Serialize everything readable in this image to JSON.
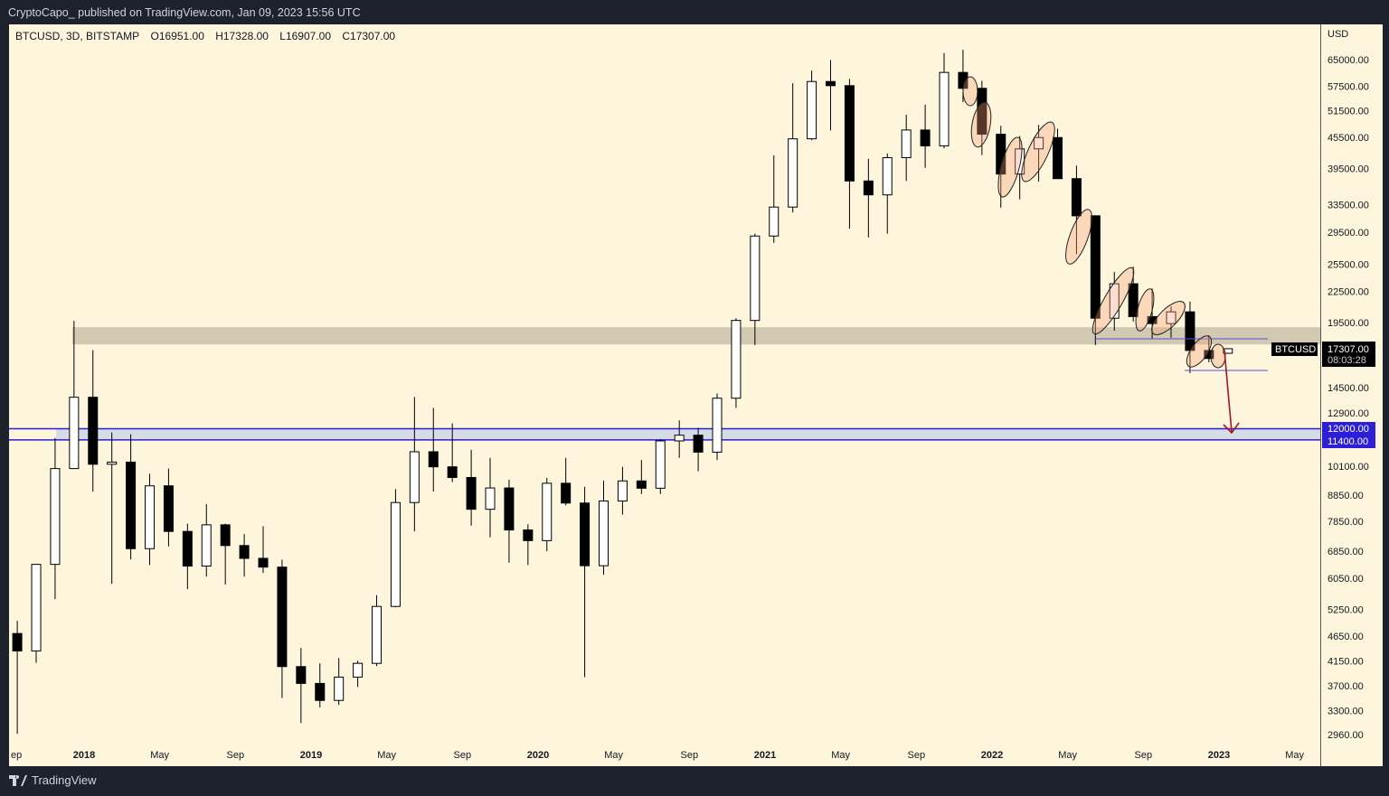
{
  "header": {
    "published_text": "CryptoCapo_ published on TradingView.com, Jan 09, 2023 15:56 UTC"
  },
  "legend": {
    "symbol": "BTCUSD, 3D, BITSTAMP",
    "open": "O16951.00",
    "high": "H17328.00",
    "low": "L16907.00",
    "close": "C17307.00"
  },
  "price_axis": {
    "currency": "USD"
  },
  "last_price": {
    "symbol_tag": "BTCUSD",
    "price": "17307.00",
    "countdown": "08:03:28"
  },
  "levels": {
    "upper_label": "12000.00",
    "lower_label": "11400.00",
    "upper": 12000,
    "lower": 11400,
    "resistance_zone": [
      17650,
      19100
    ]
  },
  "colors": {
    "background": "#fdf6dc",
    "frame": "#1e222d",
    "level_blue": "#2c1fd6",
    "zone_grey": "#d2c9b2",
    "arrow_red": "#a3162a",
    "ellipse_fill": "#f5c7a9"
  },
  "brand": {
    "name": "TradingView"
  },
  "chart_data": {
    "type": "candlestick",
    "scale": "log",
    "ylim": [
      2850,
      72000
    ],
    "grid": false,
    "y_ticks": [
      65000,
      57500,
      51500,
      45500,
      39500,
      33500,
      29500,
      25500,
      22500,
      19500,
      14500,
      12900,
      10100,
      8850,
      7850,
      6850,
      6050,
      5250,
      4650,
      4150,
      3700,
      3300,
      2960
    ],
    "x_ticks": [
      {
        "label": "ep",
        "date": "2017-09-01"
      },
      {
        "label": "2018",
        "date": "2018-01-01"
      },
      {
        "label": "May",
        "date": "2018-05-01"
      },
      {
        "label": "Sep",
        "date": "2018-09-01"
      },
      {
        "label": "2019",
        "date": "2019-01-01"
      },
      {
        "label": "May",
        "date": "2019-05-01"
      },
      {
        "label": "Sep",
        "date": "2019-09-01"
      },
      {
        "label": "2020",
        "date": "2020-01-01"
      },
      {
        "label": "May",
        "date": "2020-05-01"
      },
      {
        "label": "Sep",
        "date": "2020-09-01"
      },
      {
        "label": "2021",
        "date": "2021-01-01"
      },
      {
        "label": "May",
        "date": "2021-05-01"
      },
      {
        "label": "Sep",
        "date": "2021-09-01"
      },
      {
        "label": "2022",
        "date": "2022-01-01"
      },
      {
        "label": "May",
        "date": "2022-05-01"
      },
      {
        "label": "Sep",
        "date": "2022-09-01"
      },
      {
        "label": "2023",
        "date": "2023-01-01"
      },
      {
        "label": "May",
        "date": "2023-05-01"
      }
    ],
    "ohlc": [
      [
        "2017-09",
        4700,
        4980,
        2970,
        4340
      ],
      [
        "2017-10",
        4340,
        6470,
        4110,
        6450
      ],
      [
        "2017-11",
        6450,
        11500,
        5500,
        10000
      ],
      [
        "2017-12",
        10000,
        19666,
        10000,
        13860
      ],
      [
        "2018-01",
        13860,
        17200,
        9000,
        10200
      ],
      [
        "2018-02",
        10200,
        11800,
        5900,
        10300
      ],
      [
        "2018-03",
        10300,
        11700,
        6600,
        6930
      ],
      [
        "2018-04",
        6930,
        9760,
        6430,
        9240
      ],
      [
        "2018-05",
        9240,
        10000,
        7000,
        7500
      ],
      [
        "2018-06",
        7500,
        7770,
        5760,
        6400
      ],
      [
        "2018-07",
        6400,
        8500,
        6100,
        7730
      ],
      [
        "2018-08",
        7730,
        7770,
        5880,
        7030
      ],
      [
        "2018-09",
        7030,
        7410,
        6100,
        6630
      ],
      [
        "2018-10",
        6630,
        7680,
        6200,
        6370
      ],
      [
        "2018-11",
        6370,
        6590,
        3500,
        4040
      ],
      [
        "2018-12",
        4040,
        4400,
        3120,
        3740
      ],
      [
        "2019-01",
        3740,
        4100,
        3350,
        3460
      ],
      [
        "2019-02",
        3460,
        4200,
        3390,
        3850
      ],
      [
        "2019-03",
        3850,
        4150,
        3680,
        4100
      ],
      [
        "2019-04",
        4100,
        5600,
        4050,
        5320
      ],
      [
        "2019-05",
        5320,
        9100,
        5300,
        8560
      ],
      [
        "2019-06",
        8560,
        13880,
        7500,
        10800
      ],
      [
        "2019-07",
        10800,
        13200,
        9000,
        10080
      ],
      [
        "2019-08",
        10080,
        12300,
        9400,
        9600
      ],
      [
        "2019-09",
        9600,
        10900,
        7700,
        8300
      ],
      [
        "2019-10",
        8300,
        10500,
        7300,
        9150
      ],
      [
        "2019-11",
        9150,
        9500,
        6500,
        7550
      ],
      [
        "2019-12",
        7550,
        7750,
        6430,
        7190
      ],
      [
        "2020-01",
        7190,
        9580,
        6850,
        9350
      ],
      [
        "2020-02",
        9350,
        10500,
        8450,
        8540
      ],
      [
        "2020-03",
        8540,
        9200,
        3850,
        6410
      ],
      [
        "2020-04",
        6410,
        9460,
        6150,
        8620
      ],
      [
        "2020-05",
        8620,
        10080,
        8100,
        9450
      ],
      [
        "2020-06",
        9450,
        10400,
        8900,
        9140
      ],
      [
        "2020-07",
        9140,
        11450,
        8900,
        11350
      ],
      [
        "2020-08",
        11350,
        12470,
        10500,
        11650
      ],
      [
        "2020-09",
        11650,
        12050,
        9880,
        10780
      ],
      [
        "2020-10",
        10780,
        14100,
        10400,
        13800
      ],
      [
        "2020-11",
        13800,
        19900,
        13200,
        19700
      ],
      [
        "2020-12",
        19700,
        29300,
        17600,
        28990
      ],
      [
        "2021-01",
        28990,
        41950,
        28100,
        33100
      ],
      [
        "2021-02",
        33100,
        58350,
        32300,
        45240
      ],
      [
        "2021-03",
        45240,
        61800,
        44950,
        58800
      ],
      [
        "2021-04",
        58800,
        64900,
        47000,
        57700
      ],
      [
        "2021-05",
        57700,
        59500,
        30000,
        37300
      ],
      [
        "2021-06",
        37300,
        41300,
        28800,
        35000
      ],
      [
        "2021-07",
        35000,
        42300,
        29300,
        41500
      ],
      [
        "2021-08",
        41500,
        50500,
        37300,
        47100
      ],
      [
        "2021-09",
        47100,
        52900,
        39600,
        43800
      ],
      [
        "2021-10",
        43800,
        67000,
        43300,
        61300
      ],
      [
        "2021-11",
        61300,
        68000,
        53500,
        57000
      ],
      [
        "2021-12",
        57000,
        59000,
        42000,
        46200
      ],
      [
        "2022-01",
        46200,
        48000,
        33000,
        38500
      ],
      [
        "2022-02",
        38500,
        45800,
        34300,
        43200
      ],
      [
        "2022-03",
        43200,
        48200,
        37200,
        45500
      ],
      [
        "2022-04",
        45500,
        47400,
        37700,
        37700
      ],
      [
        "2022-05",
        37700,
        40000,
        26700,
        31800
      ],
      [
        "2022-06",
        31800,
        31900,
        17600,
        19900
      ],
      [
        "2022-07",
        19900,
        24600,
        18800,
        23300
      ],
      [
        "2022-08",
        23300,
        25200,
        19600,
        20050
      ],
      [
        "2022-09",
        20050,
        22800,
        18150,
        19420
      ],
      [
        "2022-10",
        19420,
        20990,
        18200,
        20490
      ],
      [
        "2022-11",
        20490,
        21480,
        15480,
        17170
      ],
      [
        "2022-12",
        17170,
        18400,
        16260,
        16550
      ],
      [
        "2023-01",
        16951,
        17328,
        16907,
        17307
      ]
    ]
  }
}
